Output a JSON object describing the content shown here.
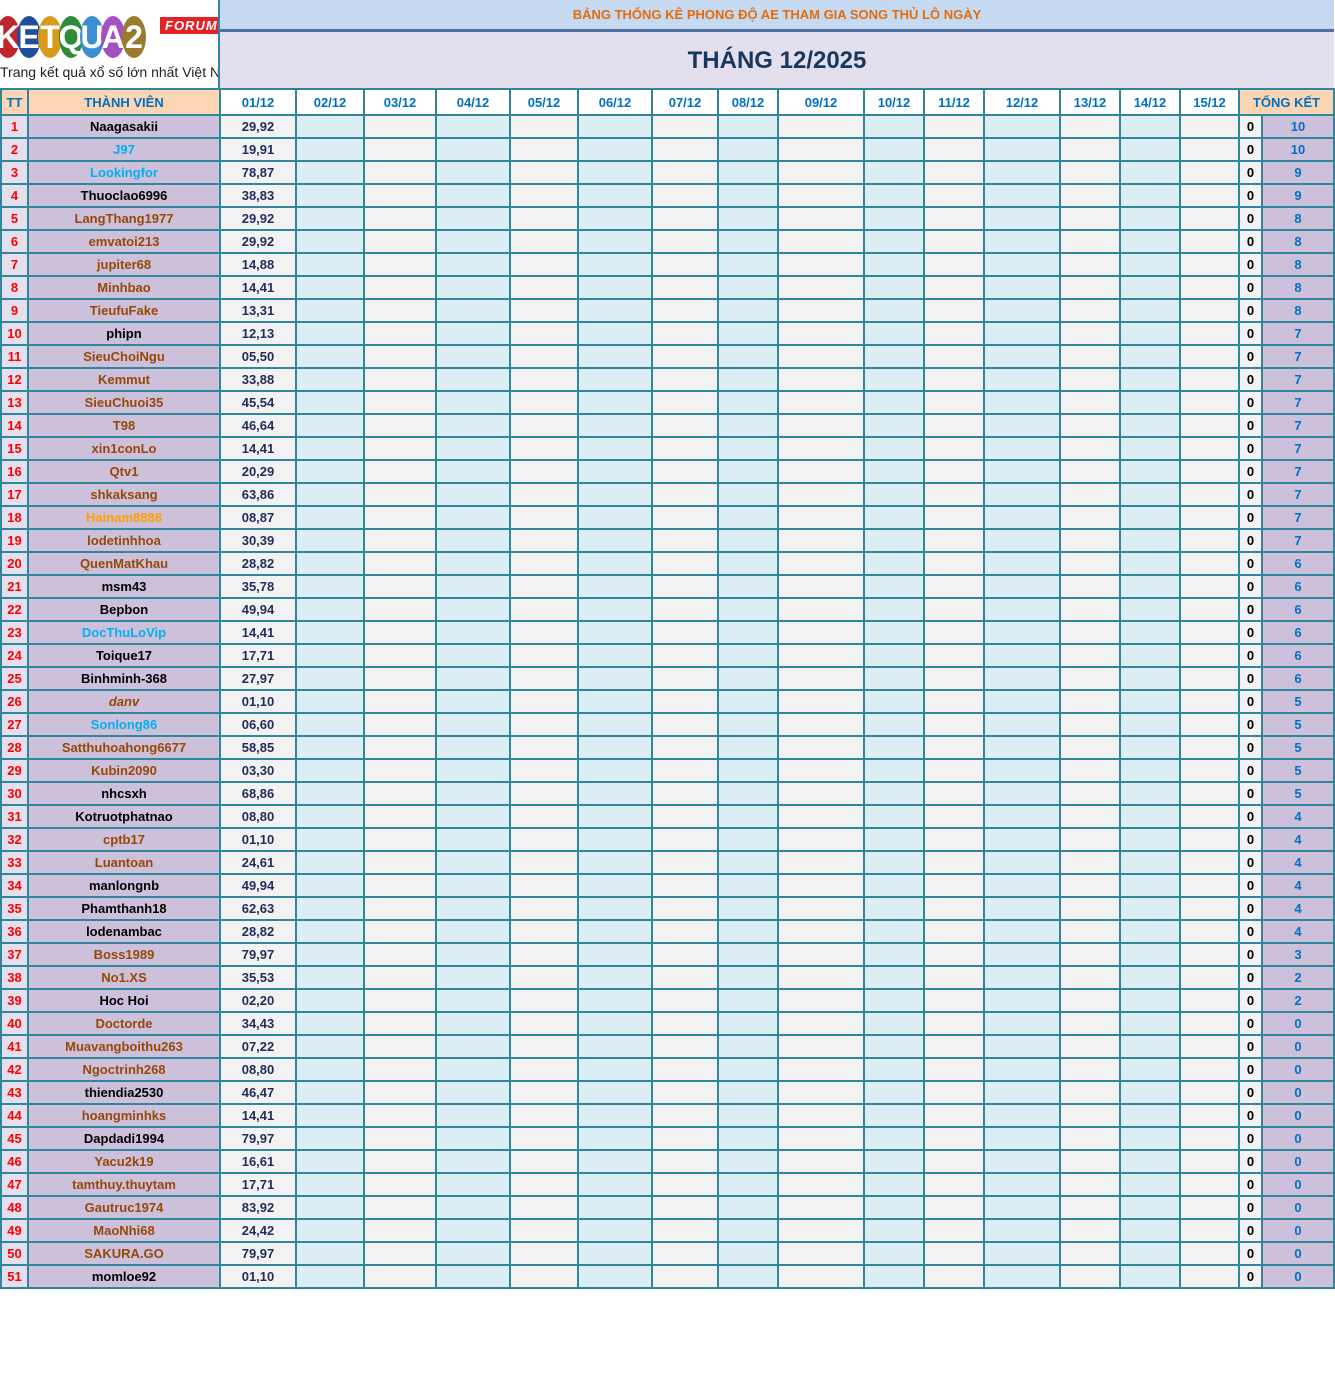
{
  "logo": {
    "text": "KETQUA2",
    "badge": "FORUM",
    "tagline": "Trang kết quả xổ số lớn nhất Việt Nam"
  },
  "title": "BẢNG THỐNG KÊ PHONG ĐỘ AE THAM GIA SONG THỦ LÔ NGÀY",
  "month": "THÁNG 12/2025",
  "headers": {
    "tt": "TT",
    "member": "THÀNH VIÊN",
    "total": "TỔNG KẾT",
    "dates": [
      "01/12",
      "02/12",
      "03/12",
      "04/12",
      "05/12",
      "06/12",
      "07/12",
      "08/12",
      "09/12",
      "10/12",
      "11/12",
      "12/12",
      "13/12",
      "14/12",
      "15/12"
    ]
  },
  "name_colors": {
    "k": "#000000",
    "bl": "#00b0f0",
    "r": "#974706",
    "o": "#ffa000"
  },
  "rows": [
    {
      "tt": "1",
      "name": "Naagasakii",
      "c": "k",
      "d1": "29,92",
      "z": "0",
      "total": "10"
    },
    {
      "tt": "2",
      "name": "J97",
      "c": "bl",
      "d1": "19,91",
      "z": "0",
      "total": "10"
    },
    {
      "tt": "3",
      "name": "Lookingfor",
      "c": "bl",
      "d1": "78,87",
      "z": "0",
      "total": "9"
    },
    {
      "tt": "4",
      "name": "Thuoclao6996",
      "c": "k",
      "d1": "38,83",
      "z": "0",
      "total": "9"
    },
    {
      "tt": "5",
      "name": "LangThang1977",
      "c": "r",
      "d1": "29,92",
      "z": "0",
      "total": "8"
    },
    {
      "tt": "6",
      "name": "emvatoi213",
      "c": "r",
      "d1": "29,92",
      "z": "0",
      "total": "8"
    },
    {
      "tt": "7",
      "name": "jupiter68",
      "c": "r",
      "d1": "14,88",
      "z": "0",
      "total": "8"
    },
    {
      "tt": "8",
      "name": "Minhbao",
      "c": "r",
      "d1": "14,41",
      "z": "0",
      "total": "8"
    },
    {
      "tt": "9",
      "name": "TieufuFake",
      "c": "r",
      "d1": "13,31",
      "z": "0",
      "total": "8"
    },
    {
      "tt": "10",
      "name": "phipn",
      "c": "k",
      "d1": "12,13",
      "z": "0",
      "total": "7"
    },
    {
      "tt": "11",
      "name": "SieuChoiNgu",
      "c": "r",
      "d1": "05,50",
      "z": "0",
      "total": "7"
    },
    {
      "tt": "12",
      "name": "Kemmut",
      "c": "r",
      "d1": "33,88",
      "z": "0",
      "total": "7"
    },
    {
      "tt": "13",
      "name": "SieuChuoi35",
      "c": "r",
      "d1": "45,54",
      "z": "0",
      "total": "7"
    },
    {
      "tt": "14",
      "name": "T98",
      "c": "r",
      "d1": "46,64",
      "z": "0",
      "total": "7"
    },
    {
      "tt": "15",
      "name": "xin1conLo",
      "c": "r",
      "d1": "14,41",
      "z": "0",
      "total": "7"
    },
    {
      "tt": "16",
      "name": "Qtv1",
      "c": "r",
      "d1": "20,29",
      "z": "0",
      "total": "7"
    },
    {
      "tt": "17",
      "name": "shkaksang",
      "c": "r",
      "d1": "63,86",
      "z": "0",
      "total": "7"
    },
    {
      "tt": "18",
      "name": "Hainam8888",
      "c": "o",
      "d1": "08,87",
      "z": "0",
      "total": "7"
    },
    {
      "tt": "19",
      "name": "lodetinhhoa",
      "c": "r",
      "d1": "30,39",
      "z": "0",
      "total": "7"
    },
    {
      "tt": "20",
      "name": "QuenMatKhau",
      "c": "r",
      "d1": "28,82",
      "z": "0",
      "total": "6"
    },
    {
      "tt": "21",
      "name": "msm43",
      "c": "k",
      "d1": "35,78",
      "z": "0",
      "total": "6"
    },
    {
      "tt": "22",
      "name": "Bepbon",
      "c": "k",
      "d1": "49,94",
      "z": "0",
      "total": "6"
    },
    {
      "tt": "23",
      "name": "DocThuLoVip",
      "c": "bl",
      "d1": "14,41",
      "z": "0",
      "total": "6"
    },
    {
      "tt": "24",
      "name": "Toique17",
      "c": "k",
      "d1": "17,71",
      "z": "0",
      "total": "6"
    },
    {
      "tt": "25",
      "name": "Binhminh-368",
      "c": "k",
      "d1": "27,97",
      "z": "0",
      "total": "6"
    },
    {
      "tt": "26",
      "name": "danv",
      "c": "r it",
      "d1": "01,10",
      "z": "0",
      "total": "5"
    },
    {
      "tt": "27",
      "name": "Sonlong86",
      "c": "bl",
      "d1": "06,60",
      "z": "0",
      "total": "5"
    },
    {
      "tt": "28",
      "name": "Satthuhoahong6677",
      "c": "r",
      "d1": "58,85",
      "z": "0",
      "total": "5"
    },
    {
      "tt": "29",
      "name": "Kubin2090",
      "c": "r",
      "d1": "03,30",
      "z": "0",
      "total": "5"
    },
    {
      "tt": "30",
      "name": "nhcsxh",
      "c": "k",
      "d1": "68,86",
      "z": "0",
      "total": "5"
    },
    {
      "tt": "31",
      "name": "Kotruotphatnao",
      "c": "k",
      "d1": "08,80",
      "z": "0",
      "total": "4"
    },
    {
      "tt": "32",
      "name": "cptb17",
      "c": "r",
      "d1": "01,10",
      "z": "0",
      "total": "4"
    },
    {
      "tt": "33",
      "name": "Luantoan",
      "c": "r",
      "d1": "24,61",
      "z": "0",
      "total": "4"
    },
    {
      "tt": "34",
      "name": "manlongnb",
      "c": "k",
      "d1": "49,94",
      "z": "0",
      "total": "4"
    },
    {
      "tt": "35",
      "name": "Phamthanh18",
      "c": "k",
      "d1": "62,63",
      "z": "0",
      "total": "4"
    },
    {
      "tt": "36",
      "name": "lodenambac",
      "c": "k",
      "d1": "28,82",
      "z": "0",
      "total": "4"
    },
    {
      "tt": "37",
      "name": "Boss1989",
      "c": "r",
      "d1": "79,97",
      "z": "0",
      "total": "3"
    },
    {
      "tt": "38",
      "name": "No1.XS",
      "c": "r",
      "d1": "35,53",
      "z": "0",
      "total": "2"
    },
    {
      "tt": "39",
      "name": "Hoc Hoi",
      "c": "k",
      "d1": "02,20",
      "z": "0",
      "total": "2"
    },
    {
      "tt": "40",
      "name": "Doctorde",
      "c": "r",
      "d1": "34,43",
      "z": "0",
      "total": "0"
    },
    {
      "tt": "41",
      "name": "Muavangboithu263",
      "c": "r",
      "d1": "07,22",
      "z": "0",
      "total": "0"
    },
    {
      "tt": "42",
      "name": "Ngoctrinh268",
      "c": "r",
      "d1": "08,80",
      "z": "0",
      "total": "0"
    },
    {
      "tt": "43",
      "name": "thiendia2530",
      "c": "k",
      "d1": "46,47",
      "z": "0",
      "total": "0"
    },
    {
      "tt": "44",
      "name": "hoangminhks",
      "c": "r",
      "d1": "14,41",
      "z": "0",
      "total": "0"
    },
    {
      "tt": "45",
      "name": "Dapdadi1994",
      "c": "k",
      "d1": "79,97",
      "z": "0",
      "total": "0"
    },
    {
      "tt": "46",
      "name": "Yacu2k19",
      "c": "r",
      "d1": "16,61",
      "z": "0",
      "total": "0"
    },
    {
      "tt": "47",
      "name": "tamthuy.thuytam",
      "c": "r",
      "d1": "17,71",
      "z": "0",
      "total": "0"
    },
    {
      "tt": "48",
      "name": "Gautruc1974",
      "c": "r",
      "d1": "83,92",
      "z": "0",
      "total": "0"
    },
    {
      "tt": "49",
      "name": "MaoNhi68",
      "c": "r",
      "d1": "24,42",
      "z": "0",
      "total": "0"
    },
    {
      "tt": "50",
      "name": "SAKURA.GO",
      "c": "r",
      "d1": "79,97",
      "z": "0",
      "total": "0"
    },
    {
      "tt": "51",
      "name": "momloe92",
      "c": "k",
      "d1": "01,10",
      "z": "0",
      "total": "0"
    }
  ]
}
